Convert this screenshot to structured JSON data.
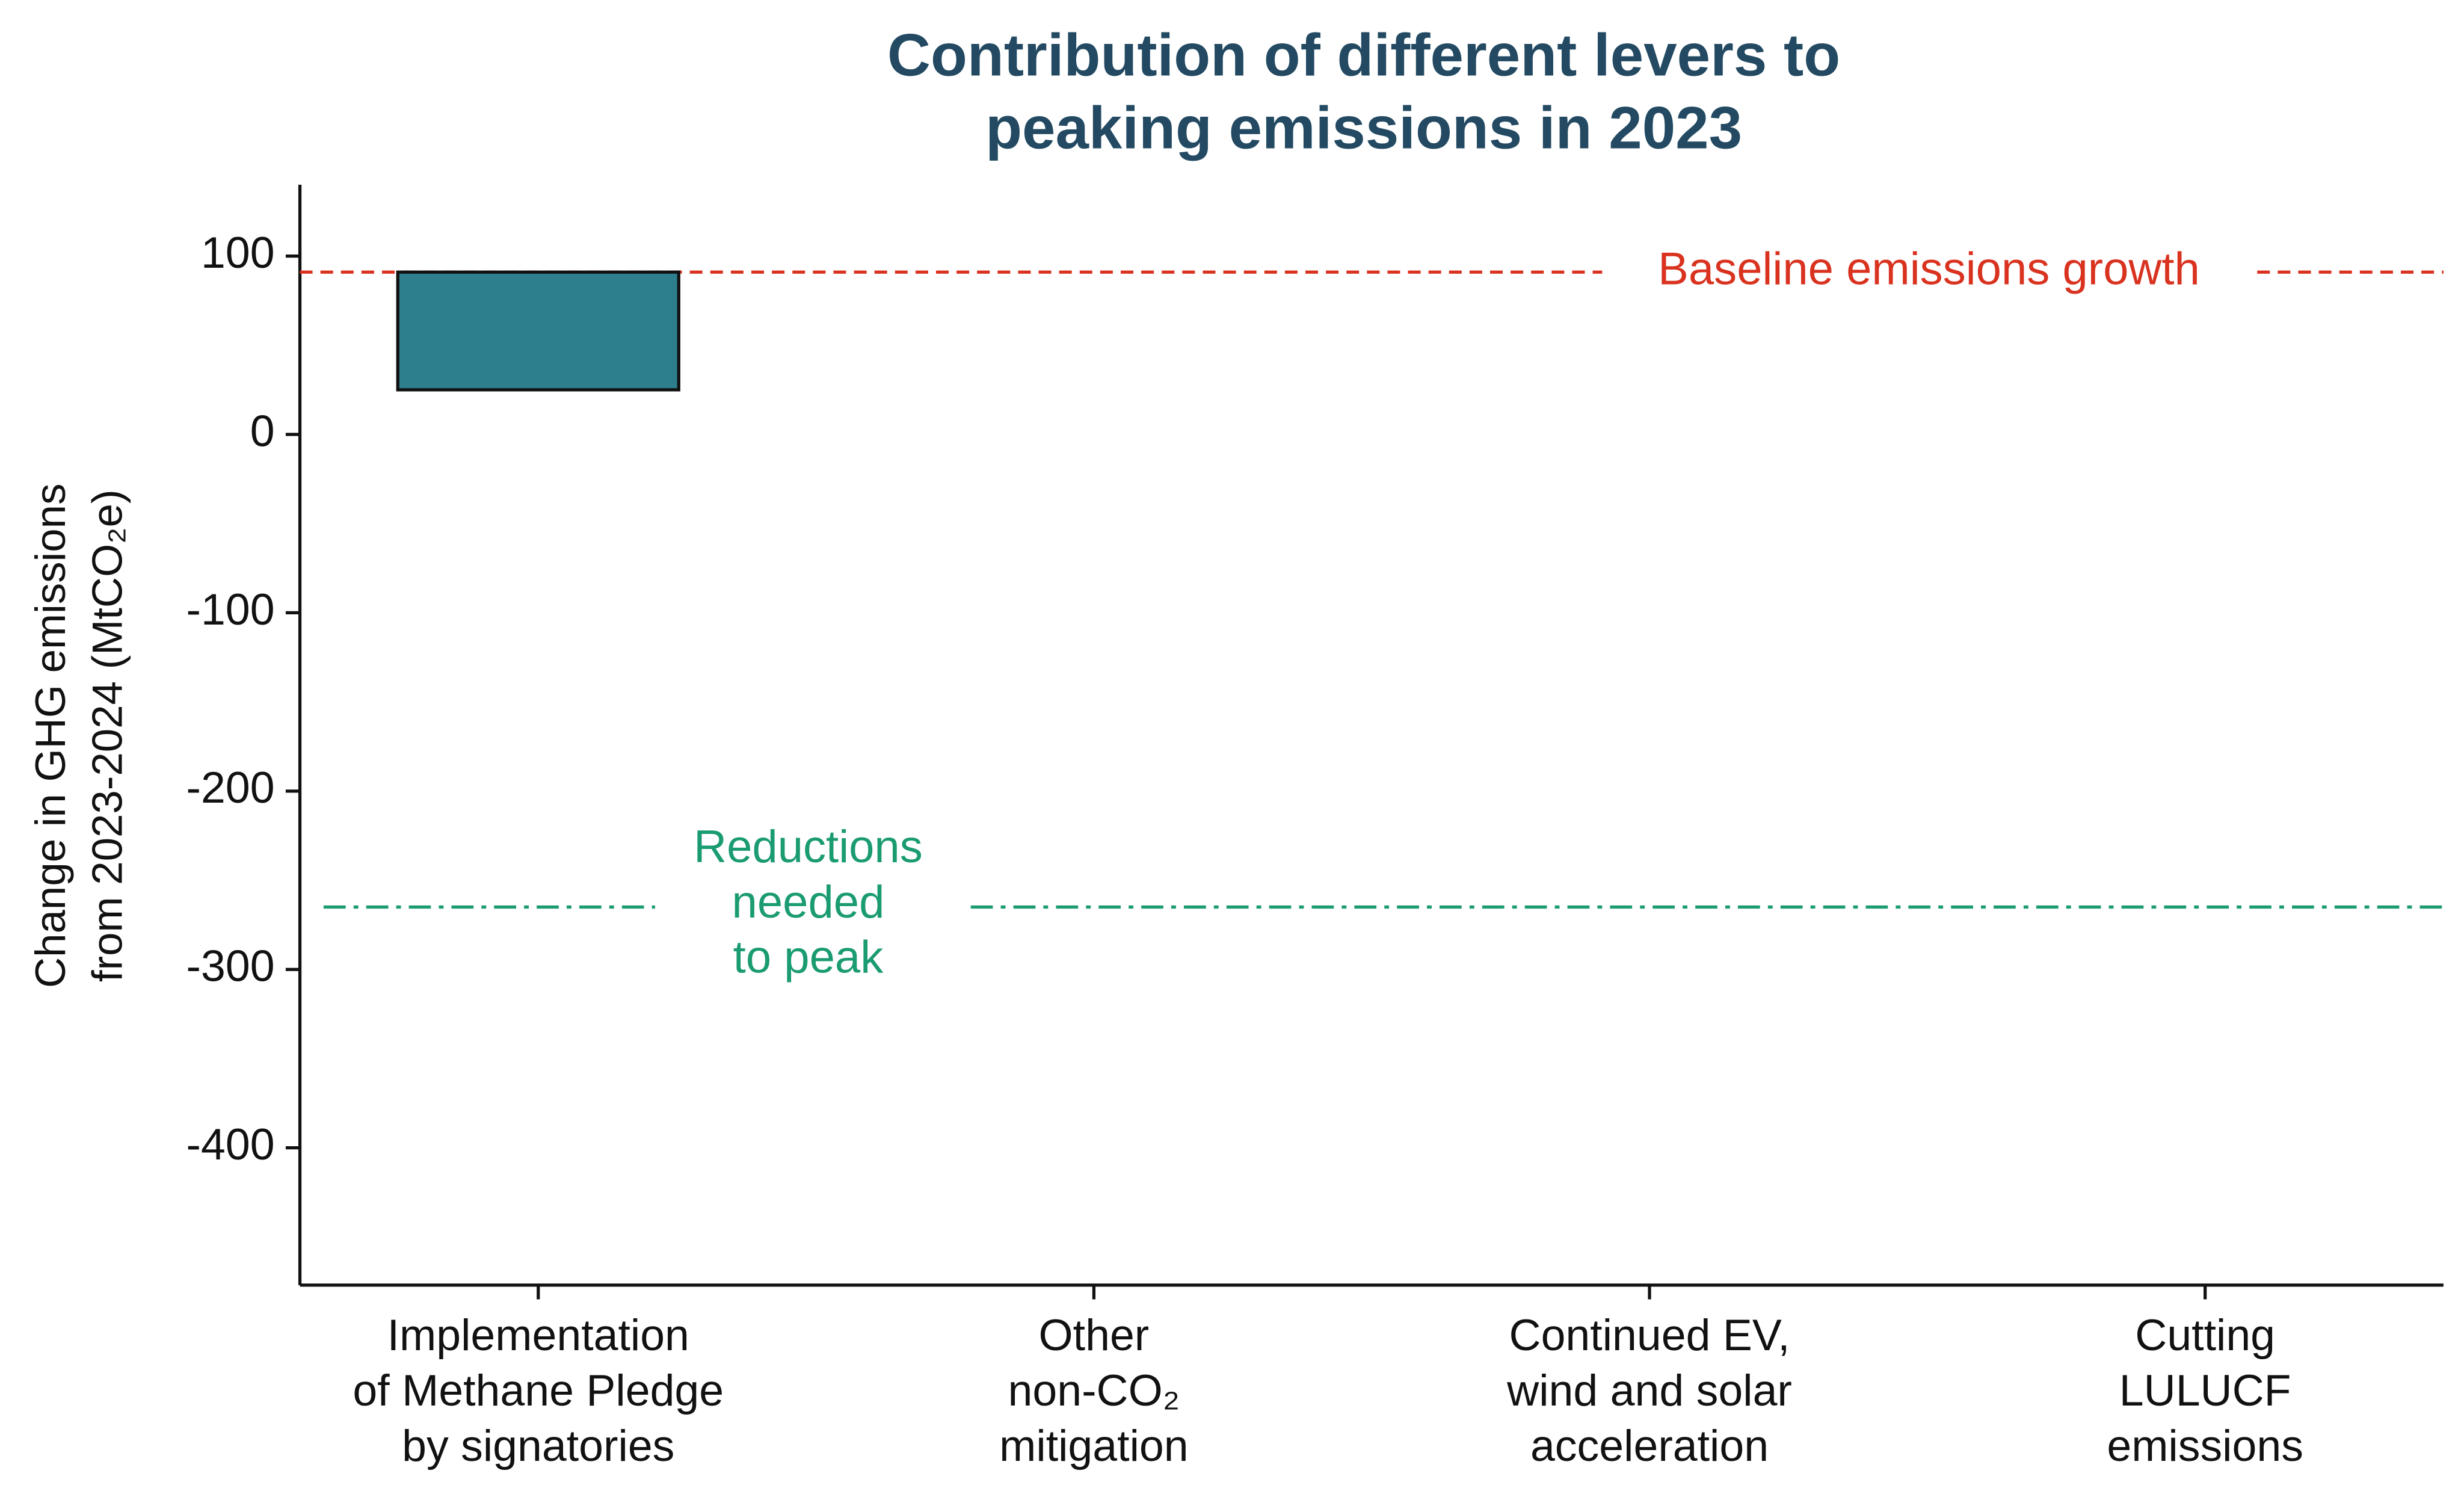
{
  "chart_data": {
    "type": "waterfall",
    "title": "Contribution of different levers to\npeaking emissions in 2023",
    "y_label": "Change in GHG emissions\nfrom 2023-2024 (MtCO₂e)",
    "categories": [
      "Implementation\nof Methane Pledge\nby signatories",
      "Other\nnon-CO₂\nmitigation",
      "Continued EV,\nwind and solar\nacceleration",
      "Cutting\nLULUCF\nemissions"
    ],
    "values": [
      -66,
      null,
      null,
      null
    ],
    "color": "#2d7f8e",
    "baseline": {
      "label": "Baseline emissions growth",
      "value": 91,
      "color": "#d9321f"
    },
    "target": {
      "label": "Reductions\nneeded\nto peak",
      "value": -265,
      "color": "#1a9b72"
    },
    "ylim": [
      -477,
      140
    ],
    "yticks": [
      100,
      0,
      -100,
      -200,
      -300,
      -400
    ],
    "grid": false
  }
}
